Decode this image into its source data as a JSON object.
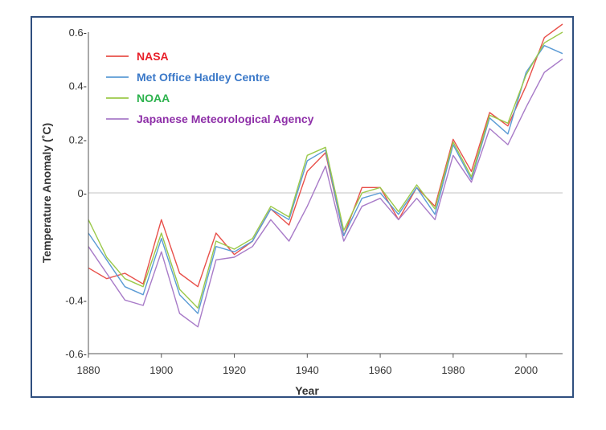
{
  "chart_data": {
    "type": "line",
    "title": "",
    "xlabel": "Year",
    "ylabel": "Temperature Anomaly (˚C)",
    "xlim": [
      1880,
      2010
    ],
    "ylim": [
      -0.6,
      0.6
    ],
    "x_ticks": [
      1880,
      1900,
      1920,
      1940,
      1960,
      1980,
      2000
    ],
    "y_ticks": [
      {
        "value": 0.6,
        "label": "0.6-"
      },
      {
        "value": 0.4,
        "label": "0.4-"
      },
      {
        "value": 0.2,
        "label": "0.2-"
      },
      {
        "value": 0,
        "label": "0-"
      },
      {
        "value": -0.4,
        "label": "-0.4-"
      },
      {
        "value": -0.6,
        "label": "-0.6-"
      }
    ],
    "zero_line": true,
    "grid": false,
    "legend_position": "top-left",
    "x_sample_step": 5,
    "series": [
      {
        "name": "NASA",
        "color": "#e8504a",
        "x": [
          1880,
          1885,
          1890,
          1895,
          1900,
          1905,
          1910,
          1915,
          1920,
          1925,
          1930,
          1935,
          1940,
          1945,
          1950,
          1955,
          1960,
          1965,
          1970,
          1975,
          1980,
          1985,
          1990,
          1995,
          2000,
          2005,
          2010
        ],
        "values": [
          -0.28,
          -0.32,
          -0.3,
          -0.34,
          -0.1,
          -0.3,
          -0.35,
          -0.15,
          -0.23,
          -0.18,
          -0.06,
          -0.12,
          0.08,
          0.15,
          -0.16,
          0.02,
          0.02,
          -0.1,
          0.02,
          -0.05,
          0.2,
          0.08,
          0.3,
          0.25,
          0.4,
          0.58,
          0.63
        ]
      },
      {
        "name": "Met Office Hadley Centre",
        "color": "#5b9bd5",
        "x": [
          1880,
          1885,
          1890,
          1895,
          1900,
          1905,
          1910,
          1915,
          1920,
          1925,
          1930,
          1935,
          1940,
          1945,
          1950,
          1955,
          1960,
          1965,
          1970,
          1975,
          1980,
          1985,
          1990,
          1995,
          2000,
          2005,
          2010
        ],
        "values": [
          -0.15,
          -0.25,
          -0.35,
          -0.38,
          -0.17,
          -0.38,
          -0.45,
          -0.2,
          -0.22,
          -0.18,
          -0.06,
          -0.1,
          0.12,
          0.16,
          -0.16,
          -0.02,
          0.0,
          -0.08,
          0.02,
          -0.08,
          0.18,
          0.05,
          0.28,
          0.22,
          0.45,
          0.55,
          0.52
        ]
      },
      {
        "name": "NOAA",
        "color": "#9bc94a",
        "x": [
          1880,
          1885,
          1890,
          1895,
          1900,
          1905,
          1910,
          1915,
          1920,
          1925,
          1930,
          1935,
          1940,
          1945,
          1950,
          1955,
          1960,
          1965,
          1970,
          1975,
          1980,
          1985,
          1990,
          1995,
          2000,
          2005,
          2010
        ],
        "values": [
          -0.1,
          -0.24,
          -0.32,
          -0.35,
          -0.15,
          -0.36,
          -0.43,
          -0.18,
          -0.21,
          -0.17,
          -0.05,
          -0.09,
          0.14,
          0.17,
          -0.14,
          0.0,
          0.02,
          -0.07,
          0.03,
          -0.06,
          0.19,
          0.06,
          0.29,
          0.26,
          0.44,
          0.56,
          0.6
        ]
      },
      {
        "name": "Japanese Meteorological Agency",
        "color": "#a87bc8",
        "x": [
          1880,
          1885,
          1890,
          1895,
          1900,
          1905,
          1910,
          1915,
          1920,
          1925,
          1930,
          1935,
          1940,
          1945,
          1950,
          1955,
          1960,
          1965,
          1970,
          1975,
          1980,
          1985,
          1990,
          1995,
          2000,
          2005,
          2010
        ],
        "values": [
          -0.2,
          -0.3,
          -0.4,
          -0.42,
          -0.22,
          -0.45,
          -0.5,
          -0.25,
          -0.24,
          -0.2,
          -0.1,
          -0.18,
          -0.05,
          0.1,
          -0.18,
          -0.05,
          -0.02,
          -0.1,
          -0.02,
          -0.1,
          0.14,
          0.04,
          0.24,
          0.18,
          0.32,
          0.45,
          0.5
        ]
      }
    ]
  }
}
